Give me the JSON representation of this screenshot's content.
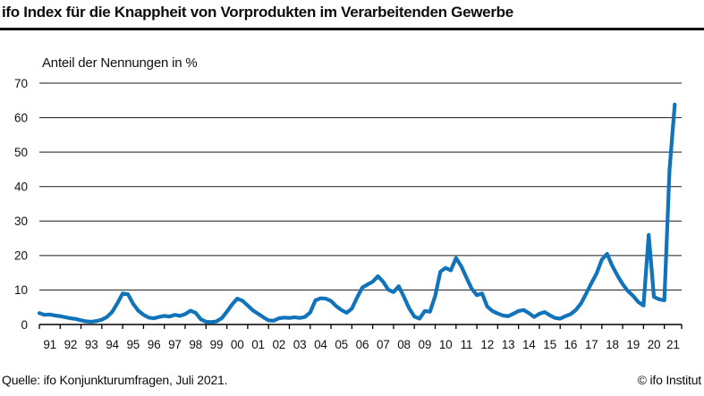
{
  "header": {
    "title": "ifo Index für die Knappheit von Vorprodukten im Verarbeitenden Gewerbe"
  },
  "chart_data": {
    "type": "line",
    "title": "ifo Index für die Knappheit von Vorprodukten im Verarbeitenden Gewerbe",
    "subtitle": "Anteil der Nennungen in %",
    "ylabel": "Anteil der Nennungen in %",
    "xlabel": "",
    "ylim": [
      0,
      70
    ],
    "y_ticks": [
      0,
      10,
      20,
      30,
      40,
      50,
      60,
      70
    ],
    "grid": "horizontal-black-lines",
    "legend": "none",
    "line_color": "#1173b9",
    "text_color": "#111111",
    "x_tick_labels": [
      "91",
      "92",
      "93",
      "94",
      "95",
      "96",
      "97",
      "98",
      "99",
      "00",
      "01",
      "02",
      "03",
      "04",
      "05",
      "06",
      "07",
      "08",
      "09",
      "10",
      "11",
      "12",
      "13",
      "14",
      "15",
      "16",
      "17",
      "18",
      "19",
      "20",
      "21"
    ],
    "x_start_year": 1991.0,
    "x_step_years": 0.25,
    "x_axis_end_year": 2021.83,
    "frequency": "quarterly",
    "last_point": {
      "x": 2021.5,
      "label": "Juli 2021",
      "value": 63.8
    },
    "series": [
      {
        "name": "Anteil der Nennungen in %",
        "values": [
          3.3,
          2.8,
          2.9,
          2.6,
          2.4,
          2.1,
          1.8,
          1.6,
          1.2,
          0.9,
          0.8,
          1.0,
          1.4,
          2.2,
          3.7,
          6.2,
          9.0,
          8.8,
          6.0,
          4.0,
          2.8,
          2.0,
          1.8,
          2.2,
          2.5,
          2.3,
          2.8,
          2.5,
          3.0,
          4.0,
          3.4,
          1.5,
          0.8,
          0.7,
          0.9,
          1.8,
          3.7,
          5.8,
          7.5,
          6.9,
          5.5,
          4.1,
          3.1,
          2.1,
          1.2,
          1.1,
          1.8,
          2.0,
          1.9,
          2.1,
          1.9,
          2.2,
          3.5,
          7.0,
          7.6,
          7.5,
          6.8,
          5.3,
          4.2,
          3.4,
          4.6,
          7.8,
          10.7,
          11.6,
          12.4,
          14.0,
          12.4,
          10.1,
          9.4,
          11.1,
          8.0,
          4.7,
          2.3,
          1.7,
          3.9,
          3.7,
          8.3,
          15.3,
          16.4,
          15.7,
          19.3,
          16.9,
          13.6,
          10.4,
          8.5,
          9.0,
          5.2,
          3.9,
          3.2,
          2.6,
          2.4,
          3.1,
          3.9,
          4.2,
          3.3,
          2.2,
          3.1,
          3.6,
          2.7,
          1.9,
          1.7,
          2.4,
          3.0,
          4.2,
          6.1,
          9.0,
          12.0,
          14.8,
          18.8,
          20.5,
          17.0,
          14.2,
          11.7,
          9.7,
          8.3,
          6.5,
          5.5,
          26.0,
          8.0,
          7.3,
          7.0,
          45.0,
          63.8
        ]
      }
    ]
  },
  "footer": {
    "source": "Quelle: ifo Konjunkturumfragen, Juli 2021.",
    "credit": "© ifo Institut"
  }
}
